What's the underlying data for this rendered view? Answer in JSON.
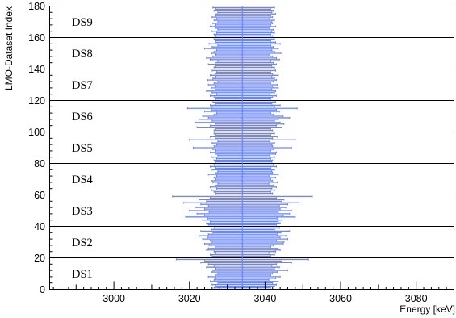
{
  "chart_data": {
    "type": "scatter",
    "title": "",
    "xlabel": "Energy [keV]",
    "ylabel": "LMO-Dataset Index",
    "xlim": [
      2983,
      3090
    ],
    "ylim": [
      0,
      180
    ],
    "x_ticks": [
      3000,
      3020,
      3040,
      3060,
      3080
    ],
    "y_ticks": [
      0,
      20,
      40,
      60,
      80,
      100,
      120,
      140,
      160,
      180
    ],
    "tick_labels_x": [
      "3000",
      "3020",
      "3040",
      "3060",
      "3080"
    ],
    "tick_labels_y": [
      "0",
      "20",
      "40",
      "60",
      "80",
      "100",
      "120",
      "140",
      "160",
      "180"
    ],
    "grid": false,
    "series_color": "#6f86f0",
    "central_line_x": 3034,
    "dataset_boundaries": [
      20,
      40,
      60,
      80,
      100,
      120,
      140,
      160,
      180
    ],
    "datasets": [
      {
        "label": "DS1",
        "y_range": [
          0,
          20
        ]
      },
      {
        "label": "DS2",
        "y_range": [
          20,
          40
        ]
      },
      {
        "label": "DS3",
        "y_range": [
          40,
          60
        ]
      },
      {
        "label": "DS4",
        "y_range": [
          60,
          80
        ]
      },
      {
        "label": "DS5",
        "y_range": [
          80,
          100
        ]
      },
      {
        "label": "DS6",
        "y_range": [
          100,
          120
        ]
      },
      {
        "label": "DS7",
        "y_range": [
          120,
          140
        ]
      },
      {
        "label": "DS8",
        "y_range": [
          140,
          160
        ]
      },
      {
        "label": "DS9",
        "y_range": [
          160,
          180
        ]
      }
    ],
    "points": [
      {
        "y": 1,
        "x": 3034.0,
        "lo": 3026.5,
        "hi": 3041.5
      },
      {
        "y": 2,
        "x": 3034.2,
        "lo": 3027.0,
        "hi": 3042.5
      },
      {
        "y": 3,
        "x": 3033.8,
        "lo": 3026.0,
        "hi": 3043.0
      },
      {
        "y": 4,
        "x": 3034.0,
        "lo": 3027.5,
        "hi": 3042.0
      },
      {
        "y": 5,
        "x": 3034.1,
        "lo": 3025.5,
        "hi": 3043.5
      },
      {
        "y": 6,
        "x": 3033.9,
        "lo": 3026.5,
        "hi": 3041.0
      },
      {
        "y": 7,
        "x": 3034.0,
        "lo": 3027.0,
        "hi": 3042.8
      },
      {
        "y": 8,
        "x": 3034.2,
        "lo": 3025.0,
        "hi": 3044.0
      },
      {
        "y": 9,
        "x": 3033.8,
        "lo": 3026.8,
        "hi": 3041.5
      },
      {
        "y": 10,
        "x": 3034.0,
        "lo": 3027.5,
        "hi": 3042.0
      },
      {
        "y": 11,
        "x": 3034.1,
        "lo": 3025.8,
        "hi": 3043.2
      },
      {
        "y": 12,
        "x": 3033.9,
        "lo": 3026.2,
        "hi": 3046.0
      },
      {
        "y": 13,
        "x": 3034.0,
        "lo": 3027.0,
        "hi": 3042.5
      },
      {
        "y": 14,
        "x": 3034.2,
        "lo": 3024.5,
        "hi": 3043.8
      },
      {
        "y": 15,
        "x": 3033.8,
        "lo": 3026.5,
        "hi": 3041.8
      },
      {
        "y": 16,
        "x": 3034.0,
        "lo": 3025.0,
        "hi": 3043.0
      },
      {
        "y": 17,
        "x": 3034.1,
        "lo": 3023.0,
        "hi": 3047.0
      },
      {
        "y": 18,
        "x": 3033.9,
        "lo": 3024.0,
        "hi": 3044.5
      },
      {
        "y": 19,
        "x": 3034.0,
        "lo": 3016.5,
        "hi": 3051.5
      },
      {
        "y": 21,
        "x": 3034.0,
        "lo": 3026.0,
        "hi": 3041.5
      },
      {
        "y": 22,
        "x": 3034.2,
        "lo": 3025.5,
        "hi": 3042.5
      },
      {
        "y": 23,
        "x": 3033.8,
        "lo": 3027.0,
        "hi": 3041.0
      },
      {
        "y": 24,
        "x": 3034.0,
        "lo": 3026.5,
        "hi": 3042.8
      },
      {
        "y": 25,
        "x": 3034.1,
        "lo": 3024.5,
        "hi": 3044.0
      },
      {
        "y": 26,
        "x": 3033.9,
        "lo": 3025.0,
        "hi": 3043.5
      },
      {
        "y": 27,
        "x": 3034.0,
        "lo": 3026.8,
        "hi": 3041.5
      },
      {
        "y": 28,
        "x": 3034.2,
        "lo": 3025.2,
        "hi": 3042.2
      },
      {
        "y": 29,
        "x": 3033.8,
        "lo": 3024.0,
        "hi": 3044.8
      },
      {
        "y": 30,
        "x": 3034.0,
        "lo": 3026.0,
        "hi": 3045.0
      },
      {
        "y": 31,
        "x": 3034.1,
        "lo": 3025.5,
        "hi": 3043.0
      },
      {
        "y": 32,
        "x": 3033.9,
        "lo": 3023.5,
        "hi": 3046.0
      },
      {
        "y": 33,
        "x": 3034.0,
        "lo": 3024.8,
        "hi": 3044.0
      },
      {
        "y": 34,
        "x": 3034.2,
        "lo": 3022.5,
        "hi": 3045.5
      },
      {
        "y": 35,
        "x": 3033.8,
        "lo": 3025.0,
        "hi": 3043.2
      },
      {
        "y": 36,
        "x": 3034.0,
        "lo": 3026.2,
        "hi": 3044.2
      },
      {
        "y": 37,
        "x": 3034.1,
        "lo": 3023.0,
        "hi": 3046.5
      },
      {
        "y": 38,
        "x": 3033.9,
        "lo": 3025.8,
        "hi": 3042.5
      },
      {
        "y": 39,
        "x": 3034.0,
        "lo": 3026.5,
        "hi": 3043.8
      },
      {
        "y": 41,
        "x": 3034.0,
        "lo": 3025.0,
        "hi": 3043.0
      },
      {
        "y": 42,
        "x": 3034.2,
        "lo": 3024.5,
        "hi": 3044.0
      },
      {
        "y": 43,
        "x": 3033.8,
        "lo": 3025.5,
        "hi": 3043.5
      },
      {
        "y": 44,
        "x": 3034.0,
        "lo": 3023.5,
        "hi": 3044.5
      },
      {
        "y": 45,
        "x": 3034.1,
        "lo": 3024.8,
        "hi": 3043.2
      },
      {
        "y": 46,
        "x": 3033.9,
        "lo": 3019.0,
        "hi": 3048.0
      },
      {
        "y": 47,
        "x": 3034.0,
        "lo": 3024.0,
        "hi": 3044.8
      },
      {
        "y": 48,
        "x": 3034.2,
        "lo": 3022.0,
        "hi": 3046.5
      },
      {
        "y": 49,
        "x": 3033.8,
        "lo": 3025.2,
        "hi": 3043.5
      },
      {
        "y": 50,
        "x": 3034.0,
        "lo": 3020.0,
        "hi": 3047.0
      },
      {
        "y": 51,
        "x": 3034.1,
        "lo": 3024.0,
        "hi": 3044.0
      },
      {
        "y": 52,
        "x": 3033.9,
        "lo": 3021.5,
        "hi": 3045.5
      },
      {
        "y": 53,
        "x": 3034.0,
        "lo": 3025.0,
        "hi": 3043.8
      },
      {
        "y": 54,
        "x": 3034.2,
        "lo": 3023.0,
        "hi": 3046.0
      },
      {
        "y": 55,
        "x": 3033.8,
        "lo": 3018.5,
        "hi": 3049.0
      },
      {
        "y": 56,
        "x": 3034.0,
        "lo": 3024.5,
        "hi": 3044.5
      },
      {
        "y": 57,
        "x": 3034.1,
        "lo": 3022.5,
        "hi": 3045.0
      },
      {
        "y": 58,
        "x": 3033.9,
        "lo": 3025.5,
        "hi": 3043.0
      },
      {
        "y": 59,
        "x": 3034.0,
        "lo": 3015.5,
        "hi": 3052.5
      },
      {
        "y": 61,
        "x": 3034.0,
        "lo": 3027.0,
        "hi": 3042.0
      },
      {
        "y": 62,
        "x": 3034.2,
        "lo": 3026.5,
        "hi": 3041.5
      },
      {
        "y": 63,
        "x": 3033.8,
        "lo": 3026.0,
        "hi": 3042.5
      },
      {
        "y": 64,
        "x": 3034.0,
        "lo": 3027.2,
        "hi": 3041.8
      },
      {
        "y": 65,
        "x": 3034.1,
        "lo": 3025.5,
        "hi": 3043.0
      },
      {
        "y": 66,
        "x": 3033.9,
        "lo": 3026.8,
        "hi": 3042.2
      },
      {
        "y": 67,
        "x": 3034.0,
        "lo": 3027.5,
        "hi": 3041.0
      },
      {
        "y": 68,
        "x": 3034.2,
        "lo": 3026.2,
        "hi": 3043.2
      },
      {
        "y": 69,
        "x": 3033.8,
        "lo": 3025.8,
        "hi": 3042.0
      },
      {
        "y": 70,
        "x": 3034.0,
        "lo": 3027.0,
        "hi": 3041.5
      },
      {
        "y": 71,
        "x": 3034.1,
        "lo": 3026.5,
        "hi": 3042.8
      },
      {
        "y": 72,
        "x": 3033.9,
        "lo": 3027.2,
        "hi": 3041.2
      },
      {
        "y": 73,
        "x": 3034.0,
        "lo": 3025.0,
        "hi": 3043.5
      },
      {
        "y": 74,
        "x": 3034.2,
        "lo": 3026.8,
        "hi": 3042.0
      },
      {
        "y": 75,
        "x": 3033.8,
        "lo": 3027.5,
        "hi": 3041.8
      },
      {
        "y": 76,
        "x": 3034.0,
        "lo": 3026.0,
        "hi": 3042.5
      },
      {
        "y": 77,
        "x": 3034.1,
        "lo": 3027.0,
        "hi": 3041.5
      },
      {
        "y": 78,
        "x": 3033.9,
        "lo": 3025.5,
        "hi": 3043.0
      },
      {
        "y": 79,
        "x": 3034.0,
        "lo": 3026.5,
        "hi": 3042.2
      },
      {
        "y": 81,
        "x": 3034.0,
        "lo": 3027.0,
        "hi": 3041.8
      },
      {
        "y": 82,
        "x": 3034.2,
        "lo": 3026.5,
        "hi": 3042.0
      },
      {
        "y": 83,
        "x": 3033.8,
        "lo": 3027.2,
        "hi": 3041.5
      },
      {
        "y": 84,
        "x": 3034.0,
        "lo": 3026.0,
        "hi": 3042.5
      },
      {
        "y": 85,
        "x": 3034.1,
        "lo": 3027.5,
        "hi": 3041.2
      },
      {
        "y": 86,
        "x": 3033.9,
        "lo": 3026.8,
        "hi": 3042.8
      },
      {
        "y": 87,
        "x": 3034.0,
        "lo": 3025.5,
        "hi": 3043.0
      },
      {
        "y": 88,
        "x": 3034.2,
        "lo": 3027.0,
        "hi": 3041.5
      },
      {
        "y": 89,
        "x": 3033.8,
        "lo": 3026.2,
        "hi": 3042.2
      },
      {
        "y": 90,
        "x": 3034.0,
        "lo": 3021.0,
        "hi": 3047.0
      },
      {
        "y": 91,
        "x": 3034.1,
        "lo": 3026.5,
        "hi": 3042.0
      },
      {
        "y": 92,
        "x": 3033.9,
        "lo": 3027.2,
        "hi": 3041.8
      },
      {
        "y": 93,
        "x": 3034.0,
        "lo": 3026.0,
        "hi": 3042.5
      },
      {
        "y": 94,
        "x": 3034.2,
        "lo": 3027.5,
        "hi": 3041.2
      },
      {
        "y": 95,
        "x": 3033.8,
        "lo": 3020.0,
        "hi": 3048.0
      },
      {
        "y": 96,
        "x": 3034.0,
        "lo": 3026.8,
        "hi": 3042.0
      },
      {
        "y": 97,
        "x": 3034.1,
        "lo": 3025.5,
        "hi": 3043.2
      },
      {
        "y": 98,
        "x": 3033.9,
        "lo": 3027.0,
        "hi": 3041.5
      },
      {
        "y": 99,
        "x": 3034.0,
        "lo": 3026.5,
        "hi": 3042.5
      },
      {
        "y": 101,
        "x": 3034.0,
        "lo": 3026.5,
        "hi": 3042.0
      },
      {
        "y": 102,
        "x": 3034.2,
        "lo": 3027.0,
        "hi": 3041.5
      },
      {
        "y": 103,
        "x": 3033.8,
        "lo": 3022.0,
        "hi": 3044.5
      },
      {
        "y": 104,
        "x": 3034.0,
        "lo": 3025.5,
        "hi": 3043.0
      },
      {
        "y": 105,
        "x": 3034.1,
        "lo": 3026.8,
        "hi": 3045.0
      },
      {
        "y": 106,
        "x": 3033.9,
        "lo": 3021.5,
        "hi": 3044.0
      },
      {
        "y": 107,
        "x": 3034.0,
        "lo": 3026.0,
        "hi": 3042.5
      },
      {
        "y": 108,
        "x": 3034.2,
        "lo": 3022.5,
        "hi": 3043.5
      },
      {
        "y": 109,
        "x": 3033.8,
        "lo": 3025.0,
        "hi": 3046.5
      },
      {
        "y": 110,
        "x": 3034.0,
        "lo": 3023.5,
        "hi": 3044.8
      },
      {
        "y": 111,
        "x": 3034.1,
        "lo": 3026.5,
        "hi": 3042.2
      },
      {
        "y": 112,
        "x": 3033.9,
        "lo": 3027.2,
        "hi": 3041.5
      },
      {
        "y": 113,
        "x": 3034.0,
        "lo": 3024.0,
        "hi": 3043.8
      },
      {
        "y": 114,
        "x": 3034.2,
        "lo": 3025.8,
        "hi": 3043.0
      },
      {
        "y": 115,
        "x": 3033.8,
        "lo": 3019.5,
        "hi": 3048.5
      },
      {
        "y": 116,
        "x": 3034.0,
        "lo": 3026.0,
        "hi": 3042.5
      },
      {
        "y": 117,
        "x": 3034.1,
        "lo": 3025.5,
        "hi": 3044.0
      },
      {
        "y": 118,
        "x": 3033.9,
        "lo": 3027.0,
        "hi": 3041.8
      },
      {
        "y": 119,
        "x": 3034.0,
        "lo": 3026.2,
        "hi": 3042.8
      },
      {
        "y": 121,
        "x": 3034.0,
        "lo": 3027.0,
        "hi": 3041.5
      },
      {
        "y": 122,
        "x": 3034.2,
        "lo": 3026.5,
        "hi": 3042.0
      },
      {
        "y": 123,
        "x": 3033.8,
        "lo": 3025.5,
        "hi": 3043.0
      },
      {
        "y": 124,
        "x": 3034.0,
        "lo": 3027.2,
        "hi": 3041.2
      },
      {
        "y": 125,
        "x": 3034.1,
        "lo": 3026.0,
        "hi": 3042.5
      },
      {
        "y": 126,
        "x": 3033.9,
        "lo": 3024.5,
        "hi": 3042.8
      },
      {
        "y": 127,
        "x": 3034.0,
        "lo": 3026.8,
        "hi": 3041.8
      },
      {
        "y": 128,
        "x": 3034.2,
        "lo": 3025.8,
        "hi": 3043.5
      },
      {
        "y": 129,
        "x": 3033.8,
        "lo": 3027.0,
        "hi": 3042.0
      },
      {
        "y": 130,
        "x": 3034.0,
        "lo": 3025.0,
        "hi": 3043.2
      },
      {
        "y": 131,
        "x": 3034.1,
        "lo": 3026.5,
        "hi": 3041.5
      },
      {
        "y": 132,
        "x": 3033.9,
        "lo": 3027.5,
        "hi": 3042.2
      },
      {
        "y": 133,
        "x": 3034.0,
        "lo": 3024.8,
        "hi": 3043.0
      },
      {
        "y": 134,
        "x": 3034.2,
        "lo": 3026.2,
        "hi": 3042.5
      },
      {
        "y": 135,
        "x": 3033.8,
        "lo": 3027.0,
        "hi": 3041.8
      },
      {
        "y": 136,
        "x": 3034.0,
        "lo": 3025.5,
        "hi": 3043.5
      },
      {
        "y": 137,
        "x": 3034.1,
        "lo": 3026.8,
        "hi": 3042.0
      },
      {
        "y": 138,
        "x": 3033.9,
        "lo": 3027.2,
        "hi": 3041.5
      },
      {
        "y": 139,
        "x": 3034.0,
        "lo": 3026.0,
        "hi": 3042.8
      },
      {
        "y": 141,
        "x": 3034.0,
        "lo": 3026.5,
        "hi": 3042.5
      },
      {
        "y": 142,
        "x": 3034.2,
        "lo": 3027.0,
        "hi": 3041.8
      },
      {
        "y": 143,
        "x": 3033.8,
        "lo": 3025.0,
        "hi": 3043.0
      },
      {
        "y": 144,
        "x": 3034.0,
        "lo": 3026.8,
        "hi": 3042.2
      },
      {
        "y": 145,
        "x": 3034.1,
        "lo": 3027.5,
        "hi": 3041.5
      },
      {
        "y": 146,
        "x": 3033.9,
        "lo": 3025.5,
        "hi": 3043.8
      },
      {
        "y": 147,
        "x": 3034.0,
        "lo": 3024.5,
        "hi": 3043.0
      },
      {
        "y": 148,
        "x": 3034.2,
        "lo": 3026.2,
        "hi": 3042.0
      },
      {
        "y": 149,
        "x": 3033.8,
        "lo": 3027.0,
        "hi": 3041.2
      },
      {
        "y": 150,
        "x": 3034.0,
        "lo": 3025.8,
        "hi": 3044.5
      },
      {
        "y": 151,
        "x": 3034.1,
        "lo": 3026.5,
        "hi": 3042.5
      },
      {
        "y": 152,
        "x": 3033.9,
        "lo": 3027.2,
        "hi": 3041.8
      },
      {
        "y": 153,
        "x": 3034.0,
        "lo": 3024.0,
        "hi": 3043.5
      },
      {
        "y": 154,
        "x": 3034.2,
        "lo": 3026.0,
        "hi": 3042.2
      },
      {
        "y": 155,
        "x": 3033.8,
        "lo": 3027.5,
        "hi": 3041.5
      },
      {
        "y": 156,
        "x": 3034.0,
        "lo": 3025.2,
        "hi": 3044.0
      },
      {
        "y": 157,
        "x": 3034.1,
        "lo": 3026.8,
        "hi": 3042.8
      },
      {
        "y": 158,
        "x": 3033.9,
        "lo": 3027.0,
        "hi": 3041.5
      },
      {
        "y": 159,
        "x": 3034.0,
        "lo": 3026.5,
        "hi": 3042.5
      },
      {
        "y": 161,
        "x": 3034.0,
        "lo": 3027.0,
        "hi": 3042.0
      },
      {
        "y": 162,
        "x": 3034.2,
        "lo": 3026.5,
        "hi": 3041.5
      },
      {
        "y": 163,
        "x": 3033.8,
        "lo": 3027.2,
        "hi": 3042.5
      },
      {
        "y": 164,
        "x": 3034.0,
        "lo": 3026.0,
        "hi": 3041.8
      },
      {
        "y": 165,
        "x": 3034.1,
        "lo": 3027.5,
        "hi": 3042.2
      },
      {
        "y": 166,
        "x": 3033.9,
        "lo": 3026.8,
        "hi": 3041.2
      },
      {
        "y": 167,
        "x": 3034.0,
        "lo": 3025.5,
        "hi": 3042.8
      },
      {
        "y": 168,
        "x": 3034.2,
        "lo": 3027.0,
        "hi": 3041.5
      },
      {
        "y": 169,
        "x": 3033.8,
        "lo": 3026.2,
        "hi": 3042.0
      },
      {
        "y": 170,
        "x": 3034.0,
        "lo": 3027.5,
        "hi": 3041.8
      },
      {
        "y": 171,
        "x": 3034.1,
        "lo": 3026.5,
        "hi": 3042.5
      },
      {
        "y": 172,
        "x": 3033.9,
        "lo": 3027.2,
        "hi": 3041.2
      },
      {
        "y": 173,
        "x": 3034.0,
        "lo": 3026.0,
        "hi": 3042.0
      },
      {
        "y": 174,
        "x": 3034.2,
        "lo": 3027.0,
        "hi": 3041.5
      },
      {
        "y": 175,
        "x": 3033.8,
        "lo": 3026.8,
        "hi": 3042.8
      },
      {
        "y": 176,
        "x": 3034.0,
        "lo": 3027.5,
        "hi": 3041.8
      },
      {
        "y": 177,
        "x": 3034.1,
        "lo": 3026.5,
        "hi": 3042.2
      },
      {
        "y": 178,
        "x": 3033.9,
        "lo": 3027.0,
        "hi": 3041.5
      },
      {
        "y": 179,
        "x": 3034.0,
        "lo": 3026.2,
        "hi": 3042.5
      }
    ]
  }
}
